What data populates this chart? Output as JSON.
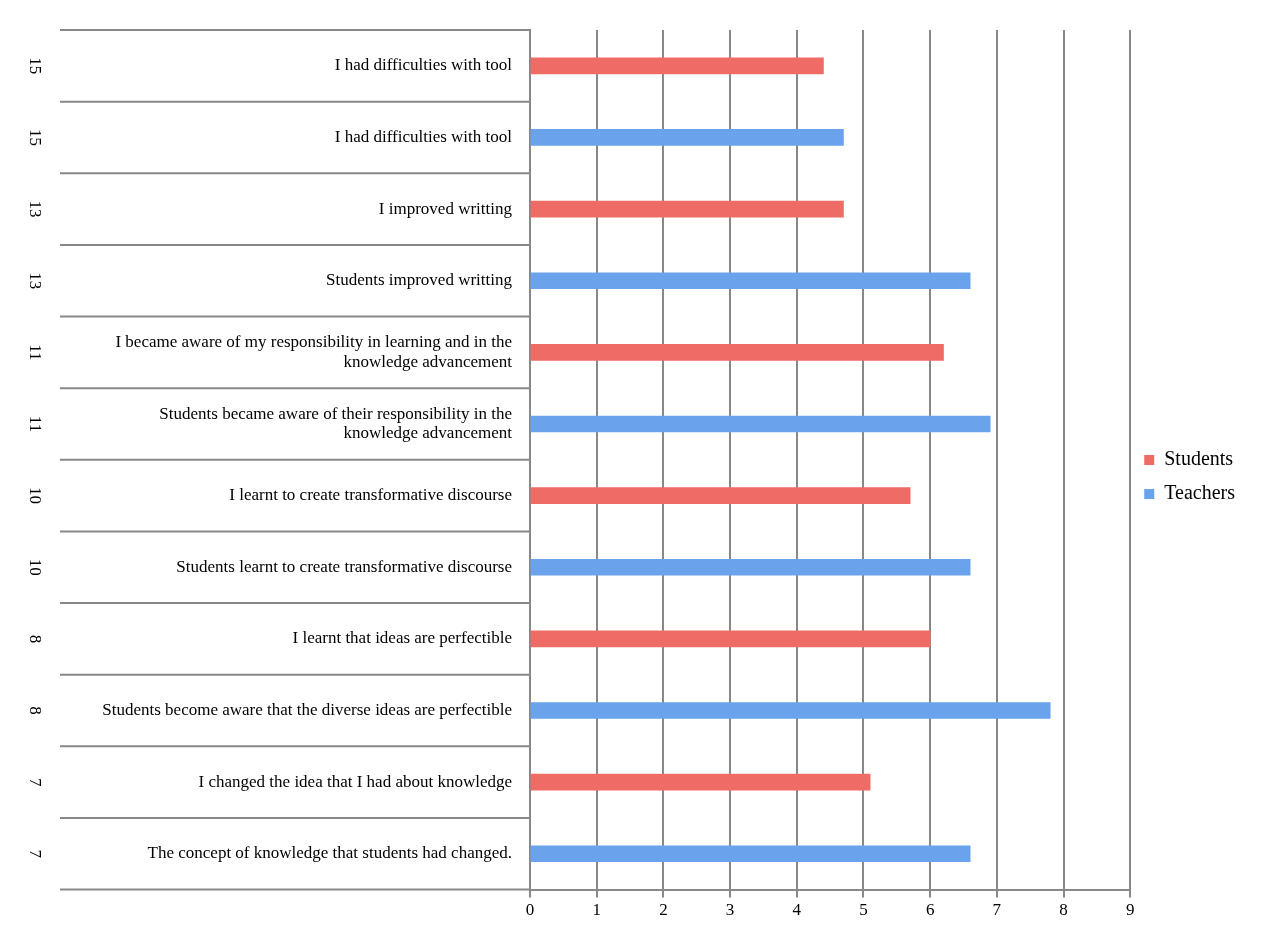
{
  "chart_data": {
    "type": "bar",
    "orientation": "horizontal",
    "categories": [
      "I had difficulties with tool",
      "I had difficulties with tool",
      "I improved writting",
      "Students improved writting",
      "I became aware of my responsibility in learning and in the knowledge advancement",
      "Students became aware of their responsibility in the knowledge advancement",
      "I learnt to create transformative discourse",
      "Students learnt to create transformative discourse",
      "I learnt that ideas are perfectible",
      "Students become aware that the diverse ideas are perfectible",
      "I changed the idea that I had about knowledge",
      "The concept of knowledge that students had changed."
    ],
    "series": [
      {
        "name": "Students",
        "color": "#ee6b66",
        "values": [
          4.4,
          null,
          4.7,
          null,
          6.2,
          null,
          5.7,
          null,
          6.0,
          null,
          5.1,
          null
        ]
      },
      {
        "name": "Teachers",
        "color": "#6aa2ec",
        "values": [
          null,
          4.7,
          null,
          6.6,
          null,
          6.9,
          null,
          6.6,
          null,
          7.8,
          null,
          6.6
        ]
      }
    ],
    "annotations": [
      "15",
      "15",
      "13",
      "13",
      "11",
      "11",
      "10",
      "10",
      "8",
      "8",
      "7",
      "7"
    ],
    "xlim": [
      0,
      9
    ],
    "xticks": [
      0,
      1,
      2,
      3,
      4,
      5,
      6,
      7,
      8,
      9
    ],
    "grid": "x",
    "legend": "right"
  }
}
